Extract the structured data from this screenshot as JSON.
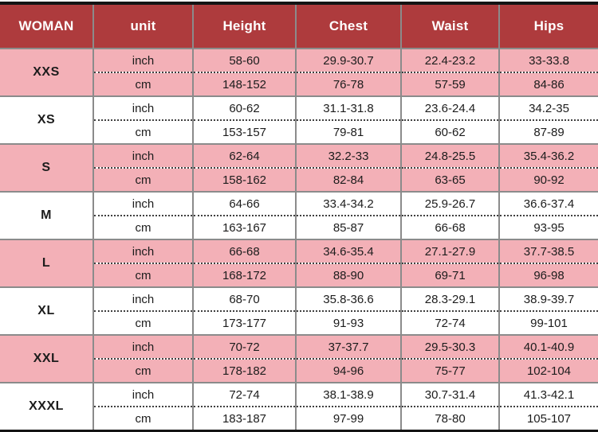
{
  "chart_data": {
    "type": "table",
    "title": "WOMAN",
    "columns": [
      "WOMAN",
      "unit",
      "Height",
      "Chest",
      "Waist",
      "Hips"
    ],
    "unit_labels": [
      "inch",
      "cm"
    ],
    "rows": [
      {
        "size": "XXS",
        "inch": {
          "height": "58-60",
          "chest": "29.9-30.7",
          "waist": "22.4-23.2",
          "hips": "33-33.8"
        },
        "cm": {
          "height": "148-152",
          "chest": "76-78",
          "waist": "57-59",
          "hips": "84-86"
        }
      },
      {
        "size": "XS",
        "inch": {
          "height": "60-62",
          "chest": "31.1-31.8",
          "waist": "23.6-24.4",
          "hips": "34.2-35"
        },
        "cm": {
          "height": "153-157",
          "chest": "79-81",
          "waist": "60-62",
          "hips": "87-89"
        }
      },
      {
        "size": "S",
        "inch": {
          "height": "62-64",
          "chest": "32.2-33",
          "waist": "24.8-25.5",
          "hips": "35.4-36.2"
        },
        "cm": {
          "height": "158-162",
          "chest": "82-84",
          "waist": "63-65",
          "hips": "90-92"
        }
      },
      {
        "size": "M",
        "inch": {
          "height": "64-66",
          "chest": "33.4-34.2",
          "waist": "25.9-26.7",
          "hips": "36.6-37.4"
        },
        "cm": {
          "height": "163-167",
          "chest": "85-87",
          "waist": "66-68",
          "hips": "93-95"
        }
      },
      {
        "size": "L",
        "inch": {
          "height": "66-68",
          "chest": "34.6-35.4",
          "waist": "27.1-27.9",
          "hips": "37.7-38.5"
        },
        "cm": {
          "height": "168-172",
          "chest": "88-90",
          "waist": "69-71",
          "hips": "96-98"
        }
      },
      {
        "size": "XL",
        "inch": {
          "height": "68-70",
          "chest": "35.8-36.6",
          "waist": "28.3-29.1",
          "hips": "38.9-39.7"
        },
        "cm": {
          "height": "173-177",
          "chest": "91-93",
          "waist": "72-74",
          "hips": "99-101"
        }
      },
      {
        "size": "XXL",
        "inch": {
          "height": "70-72",
          "chest": "37-37.7",
          "waist": "29.5-30.3",
          "hips": "40.1-40.9"
        },
        "cm": {
          "height": "178-182",
          "chest": "94-96",
          "waist": "75-77",
          "hips": "102-104"
        }
      },
      {
        "size": "XXXL",
        "inch": {
          "height": "72-74",
          "chest": "38.1-38.9",
          "waist": "30.7-31.4",
          "hips": "41.3-42.1"
        },
        "cm": {
          "height": "183-187",
          "chest": "97-99",
          "waist": "78-80",
          "hips": "105-107"
        }
      }
    ],
    "layout": {
      "alternating_groups": "pink,white starting with XXS pink",
      "grid": "solid gray between groups and columns, dotted between inch/cm sub-rows"
    }
  },
  "colors": {
    "header_bg": "#AE3B3D",
    "header_text": "#FFFFFF",
    "row_pink": "#F3B0B7",
    "row_white": "#FFFFFF",
    "grid_gray": "#8B8B8B",
    "outer_border_black": "#141414",
    "cell_text": "#1C1C1C"
  }
}
